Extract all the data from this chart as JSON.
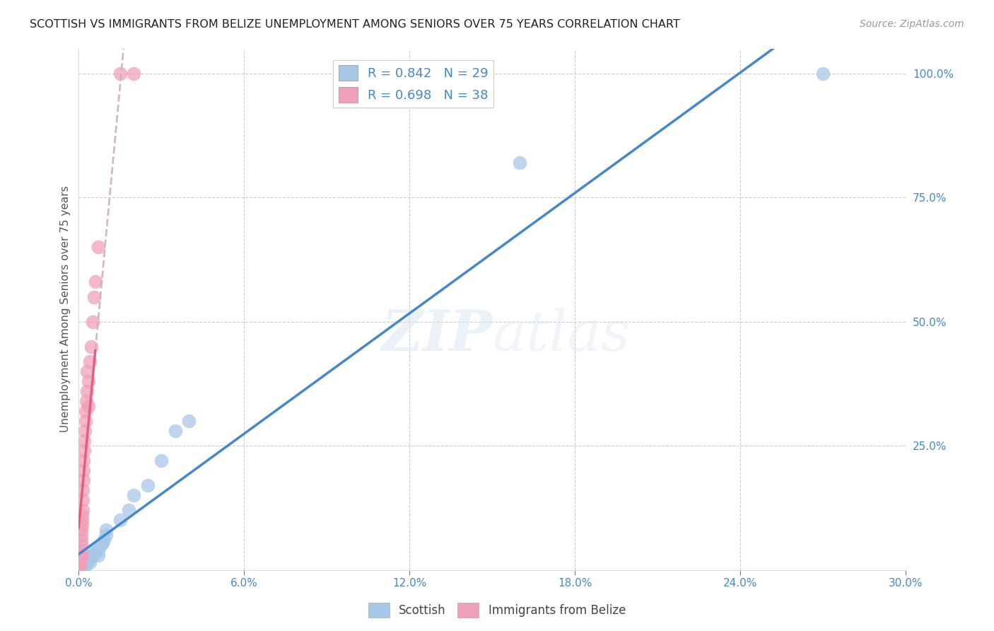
{
  "title": "SCOTTISH VS IMMIGRANTS FROM BELIZE UNEMPLOYMENT AMONG SENIORS OVER 75 YEARS CORRELATION CHART",
  "source": "Source: ZipAtlas.com",
  "ylabel": "Unemployment Among Seniors over 75 years",
  "watermark": "ZIPatlas",
  "legend_scottish_r": "0.842",
  "legend_scottish_n": "29",
  "legend_belize_r": "0.698",
  "legend_belize_n": "38",
  "scottish_color": "#a8c8e8",
  "belize_color": "#f0a0b8",
  "scottish_line_color": "#4488cc",
  "belize_line_color": "#e06080",
  "belize_dash_color": "#d0b0c0",
  "scottish_points": [
    [
      0.1,
      0.5
    ],
    [
      0.15,
      1.0
    ],
    [
      0.2,
      1.5
    ],
    [
      0.25,
      1.0
    ],
    [
      0.3,
      2.0
    ],
    [
      0.3,
      2.5
    ],
    [
      0.35,
      2.0
    ],
    [
      0.4,
      2.5
    ],
    [
      0.4,
      1.5
    ],
    [
      0.45,
      2.5
    ],
    [
      0.5,
      3.0
    ],
    [
      0.5,
      4.0
    ],
    [
      0.6,
      3.5
    ],
    [
      0.7,
      3.0
    ],
    [
      0.7,
      4.0
    ],
    [
      0.8,
      5.0
    ],
    [
      0.85,
      5.5
    ],
    [
      0.9,
      6.0
    ],
    [
      1.0,
      7.0
    ],
    [
      1.0,
      8.0
    ],
    [
      1.5,
      10.0
    ],
    [
      1.8,
      12.0
    ],
    [
      2.0,
      15.0
    ],
    [
      2.5,
      17.0
    ],
    [
      3.0,
      22.0
    ],
    [
      3.5,
      28.0
    ],
    [
      4.0,
      30.0
    ],
    [
      16.0,
      82.0
    ],
    [
      27.0,
      100.0
    ]
  ],
  "belize_points": [
    [
      0.02,
      0.5
    ],
    [
      0.04,
      1.0
    ],
    [
      0.05,
      2.0
    ],
    [
      0.06,
      3.0
    ],
    [
      0.07,
      4.0
    ],
    [
      0.08,
      2.5
    ],
    [
      0.08,
      5.0
    ],
    [
      0.09,
      6.0
    ],
    [
      0.1,
      3.5
    ],
    [
      0.1,
      7.0
    ],
    [
      0.1,
      8.0
    ],
    [
      0.12,
      9.0
    ],
    [
      0.12,
      10.0
    ],
    [
      0.13,
      11.0
    ],
    [
      0.15,
      12.0
    ],
    [
      0.15,
      14.0
    ],
    [
      0.15,
      16.0
    ],
    [
      0.18,
      18.0
    ],
    [
      0.18,
      20.0
    ],
    [
      0.18,
      22.0
    ],
    [
      0.2,
      24.0
    ],
    [
      0.2,
      26.0
    ],
    [
      0.22,
      28.0
    ],
    [
      0.25,
      30.0
    ],
    [
      0.25,
      32.0
    ],
    [
      0.28,
      34.0
    ],
    [
      0.3,
      36.0
    ],
    [
      0.3,
      40.0
    ],
    [
      0.35,
      33.0
    ],
    [
      0.35,
      38.0
    ],
    [
      0.4,
      42.0
    ],
    [
      0.45,
      45.0
    ],
    [
      0.5,
      50.0
    ],
    [
      0.55,
      55.0
    ],
    [
      0.6,
      58.0
    ],
    [
      0.7,
      65.0
    ],
    [
      1.5,
      100.0
    ],
    [
      2.0,
      100.0
    ]
  ],
  "xlim": [
    0,
    30
  ],
  "ylim": [
    0,
    105
  ],
  "xticks": [
    0,
    6,
    12,
    18,
    24,
    30
  ],
  "yticks_right": [
    0,
    25,
    50,
    75,
    100
  ],
  "figsize": [
    14.06,
    8.92
  ],
  "dpi": 100
}
